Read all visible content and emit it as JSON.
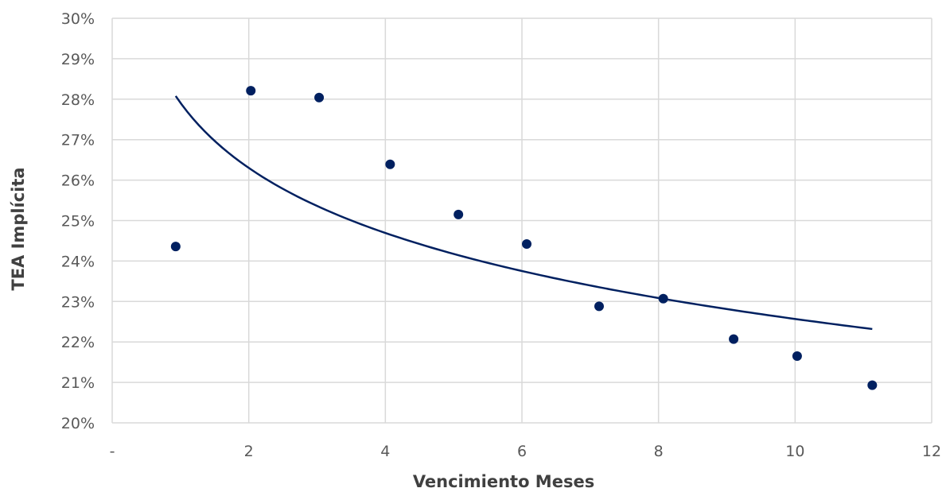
{
  "chart_data": {
    "type": "scatter",
    "xlabel": "Vencimiento Meses",
    "ylabel": "TEA Implícita",
    "xlim": [
      0,
      12
    ],
    "ylim": [
      0.2,
      0.3
    ],
    "x_ticks": [
      0,
      2,
      4,
      6,
      8,
      10,
      12
    ],
    "x_tick_labels": [
      "-",
      "2",
      "4",
      "6",
      "8",
      "10",
      "12"
    ],
    "y_ticks": [
      0.2,
      0.21,
      0.22,
      0.23,
      0.24,
      0.25,
      0.26,
      0.27,
      0.28,
      0.29,
      0.3
    ],
    "y_tick_labels": [
      "20%",
      "21%",
      "22%",
      "23%",
      "24%",
      "25%",
      "26%",
      "27%",
      "28%",
      "29%",
      "30%"
    ],
    "grid": true,
    "legend": "none",
    "series": [
      {
        "type": "scatter",
        "color": "#002060",
        "points": [
          {
            "x": 0.93,
            "y": 0.2436
          },
          {
            "x": 2.03,
            "y": 0.2821
          },
          {
            "x": 3.03,
            "y": 0.2804
          },
          {
            "x": 4.07,
            "y": 0.2639
          },
          {
            "x": 5.07,
            "y": 0.2515
          },
          {
            "x": 6.07,
            "y": 0.2442
          },
          {
            "x": 7.13,
            "y": 0.2288
          },
          {
            "x": 8.07,
            "y": 0.2307
          },
          {
            "x": 9.1,
            "y": 0.2207
          },
          {
            "x": 10.03,
            "y": 0.2165
          },
          {
            "x": 11.13,
            "y": 0.2093
          }
        ]
      },
      {
        "type": "trendline",
        "kind": "logarithmic",
        "color": "#002060",
        "coef_a": 0.2791,
        "coef_b": -0.0232,
        "x_start": 0.93,
        "x_end": 11.13
      }
    ]
  }
}
